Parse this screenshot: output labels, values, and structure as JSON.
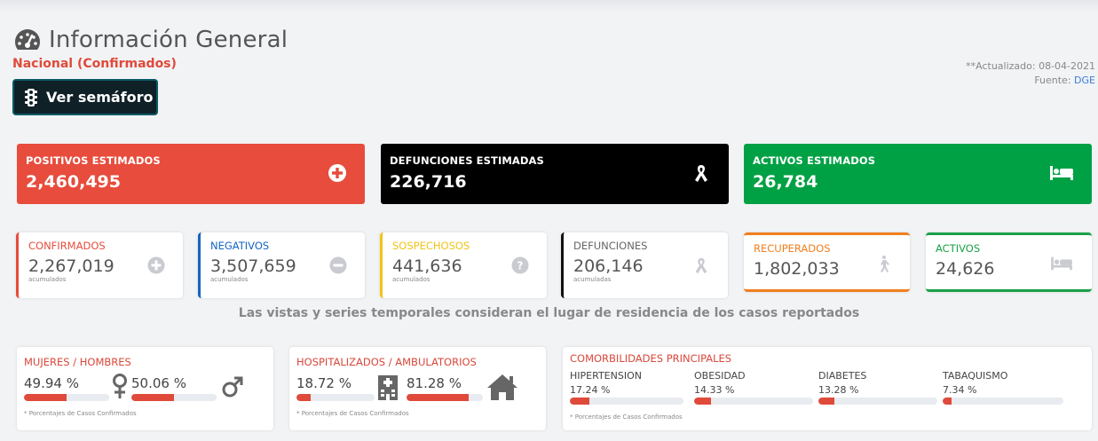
{
  "header": {
    "title": "Información General",
    "subtitle": "Nacional (Confirmados)",
    "semaforo_button": "Ver semáforo",
    "updated_label": "**Actualizado: 08-04-2021",
    "source_label": "Fuente:",
    "source_link": "DGE"
  },
  "estimates": [
    {
      "label": "POSITIVOS ESTIMADOS",
      "value": "2,460,495",
      "color": "#e74c3c",
      "icon": "plus-circle-icon"
    },
    {
      "label": "DEFUNCIONES ESTIMADAS",
      "value": "226,716",
      "color": "#000000",
      "icon": "ribbon-icon"
    },
    {
      "label": "ACTIVOS ESTIMADOS",
      "value": "26,784",
      "color": "#00a144",
      "icon": "bed-icon"
    }
  ],
  "stats": [
    {
      "label": "CONFIRMADOS",
      "value": "2,267,019",
      "sub": "acumulados",
      "color": "#e74c3c",
      "icon": "plus-circle-icon"
    },
    {
      "label": "NEGATIVOS",
      "value": "3,507,659",
      "sub": "acumulados",
      "color": "#1565c0",
      "icon": "minus-circle-icon"
    },
    {
      "label": "SOSPECHOSOS",
      "value": "441,636",
      "sub": "acumulados",
      "color": "#f0c419",
      "icon": "question-circle-icon"
    },
    {
      "label": "DEFUNCIONES",
      "value": "206,146",
      "sub": "acumuladas",
      "color": "#111111",
      "icon": "ribbon-icon"
    },
    {
      "label": "RECUPERADOS",
      "value": "1,802,033",
      "color": "#f07f1e",
      "icon": "walking-icon"
    },
    {
      "label": "ACTIVOS",
      "value": "24,626",
      "color": "#1aa048",
      "icon": "bed-icon"
    }
  ],
  "note": "Las vistas y series temporales consideran el lugar de residencia de los casos reportados",
  "gender": {
    "title": "MUJERES / HOMBRES",
    "women_pct": "49.94 %",
    "men_pct": "50.06 %",
    "women_value": 49.94,
    "men_value": 50.06,
    "footnote": "* Porcentajes  de Casos Confirmados"
  },
  "hospital": {
    "title": "HOSPITALIZADOS / AMBULATORIOS",
    "hosp_pct": "18.72 %",
    "amb_pct": "81.28 %",
    "hosp_value": 18.72,
    "amb_value": 81.28,
    "footnote": "* Porcentajes  de Casos Confirmados"
  },
  "comorbidities": {
    "title": "COMORBILIDADES PRINCIPALES",
    "items": [
      {
        "name": "HIPERTENSION",
        "pct": "17.24 %",
        "value": 17.24
      },
      {
        "name": "OBESIDAD",
        "pct": "14.33 %",
        "value": 14.33
      },
      {
        "name": "DIABETES",
        "pct": "13.28 %",
        "value": 13.28
      },
      {
        "name": "TABAQUISMO",
        "pct": "7.34 %",
        "value": 7.34
      }
    ],
    "footnote": "* Porcentajes  de Casos Confirmados"
  }
}
